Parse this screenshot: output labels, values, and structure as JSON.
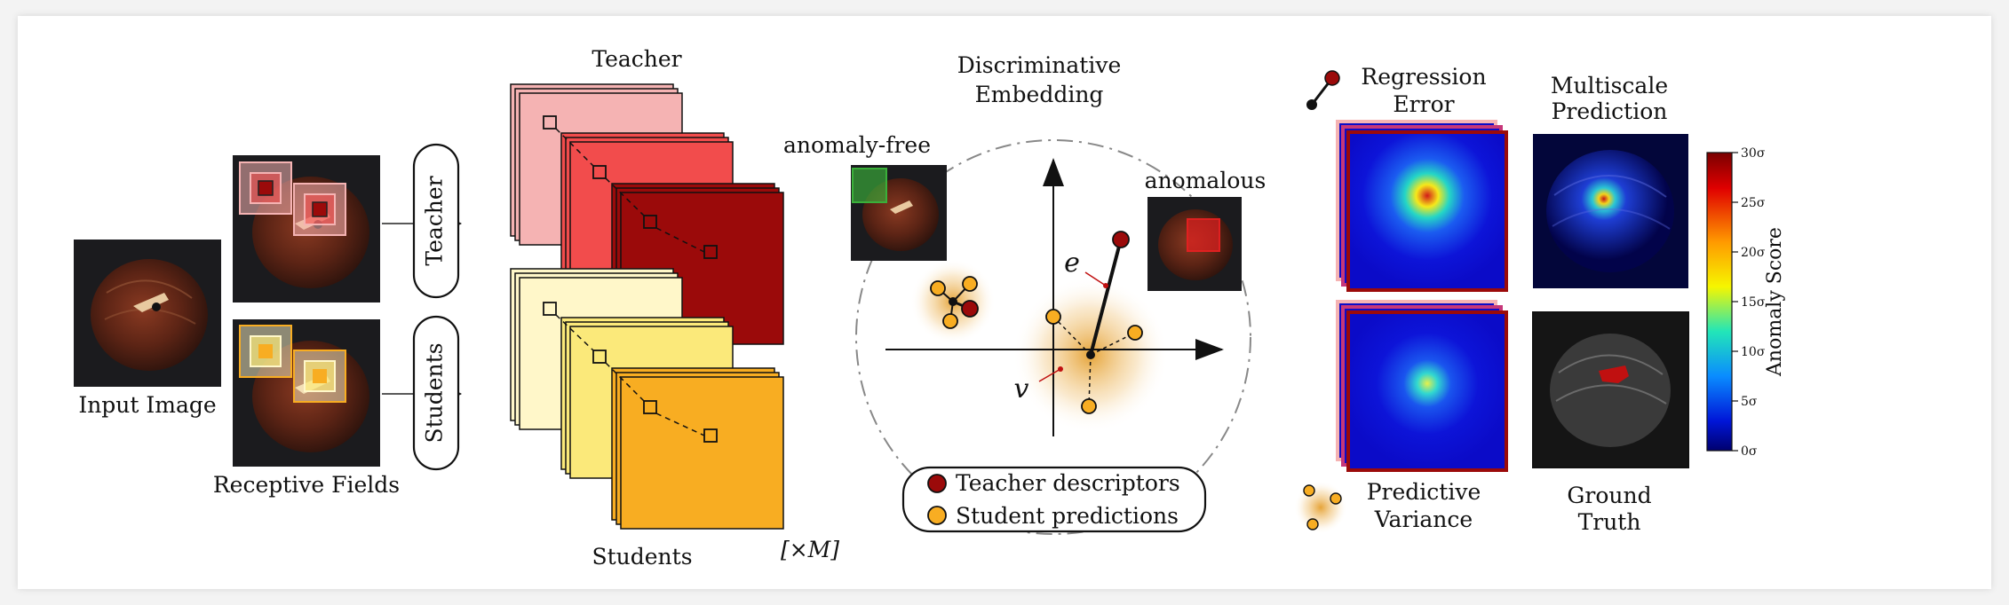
{
  "input": {
    "label": "Input Image"
  },
  "receptive": {
    "label": "Receptive Fields"
  },
  "pills": {
    "teacher": "Teacher",
    "students": "Students"
  },
  "stacks": {
    "teacher_title": "Teacher",
    "students_title": "Students",
    "multiplier": "[×M]"
  },
  "embedding": {
    "title_line1": "Discriminative",
    "title_line2": "Embedding",
    "anomaly_free": "anomaly-free",
    "anomalous": "anomalous",
    "e_label": "e",
    "v_label": "v",
    "legend": {
      "teacher": "Teacher descriptors",
      "students": "Student predictions"
    }
  },
  "results": {
    "regression_line1": "Regression",
    "regression_line2": "Error",
    "multiscale_line1": "Multiscale",
    "multiscale_line2": "Prediction",
    "variance_line1": "Predictive",
    "variance_line2": "Variance",
    "ground_line1": "Ground",
    "ground_line2": "Truth"
  },
  "colorbar": {
    "label": "Anomaly Score",
    "ticks": [
      "30σ",
      "25σ",
      "20σ",
      "15σ",
      "10σ",
      "5σ",
      "0σ"
    ]
  },
  "colors": {
    "teacher_dark": "#9b0a0a",
    "teacher_mid": "#f24c4c",
    "teacher_light": "#f5b3b3",
    "student_dark": "#f8ad22",
    "student_mid": "#fbe97a",
    "student_light": "#fff7c9",
    "heat_blue": "#0b0bc8"
  }
}
